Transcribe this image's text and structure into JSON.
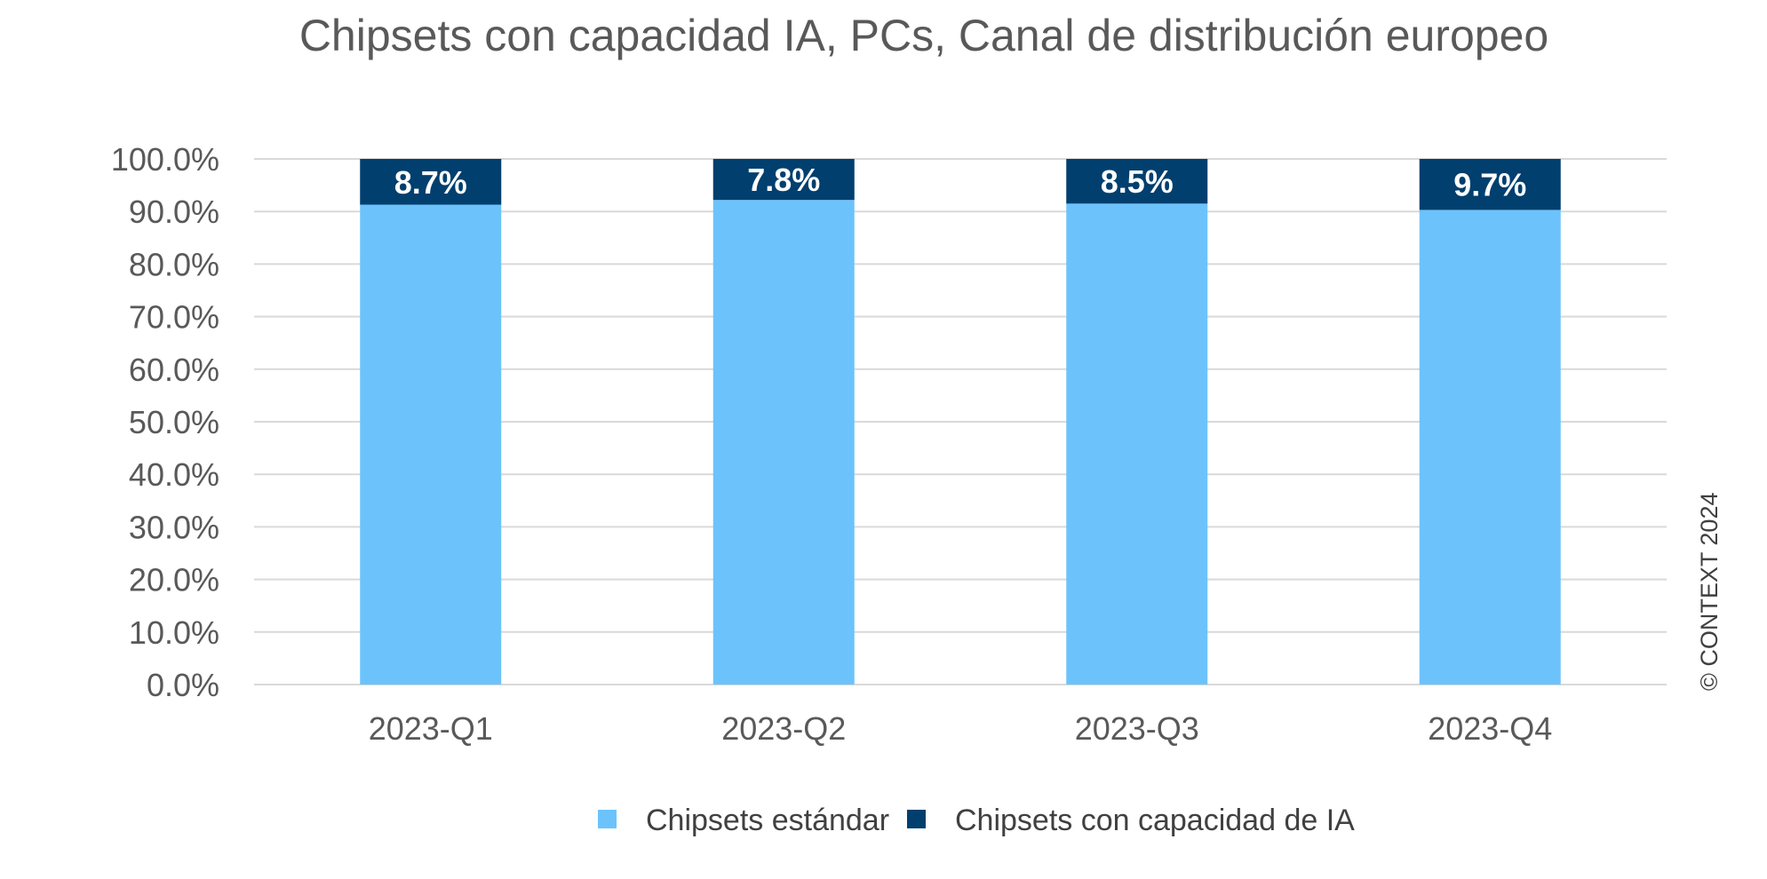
{
  "chart_data": {
    "type": "bar",
    "stacked": true,
    "title": "Chipsets con capacidad IA, PCs, Canal de distribución europeo",
    "categories": [
      "2023-Q1",
      "2023-Q2",
      "2023-Q3",
      "2023-Q4"
    ],
    "series": [
      {
        "name": "Chipsets estándar",
        "values": [
          91.3,
          92.2,
          91.5,
          90.3
        ],
        "color": "#6cc3fc"
      },
      {
        "name": "Chipsets con capacidad de IA",
        "values": [
          8.7,
          7.8,
          8.5,
          9.7
        ],
        "color": "#003f6e",
        "data_labels": [
          "8.7%",
          "7.8%",
          "8.5%",
          "9.7%"
        ]
      }
    ],
    "y_ticks": [
      "0.0%",
      "10.0%",
      "20.0%",
      "30.0%",
      "40.0%",
      "50.0%",
      "60.0%",
      "70.0%",
      "80.0%",
      "90.0%",
      "100.0%"
    ],
    "ylim": [
      0,
      100
    ],
    "grid": true,
    "legend_position": "bottom",
    "xlabel": "",
    "ylabel": ""
  },
  "copyright": "© CONTEXT 2024"
}
